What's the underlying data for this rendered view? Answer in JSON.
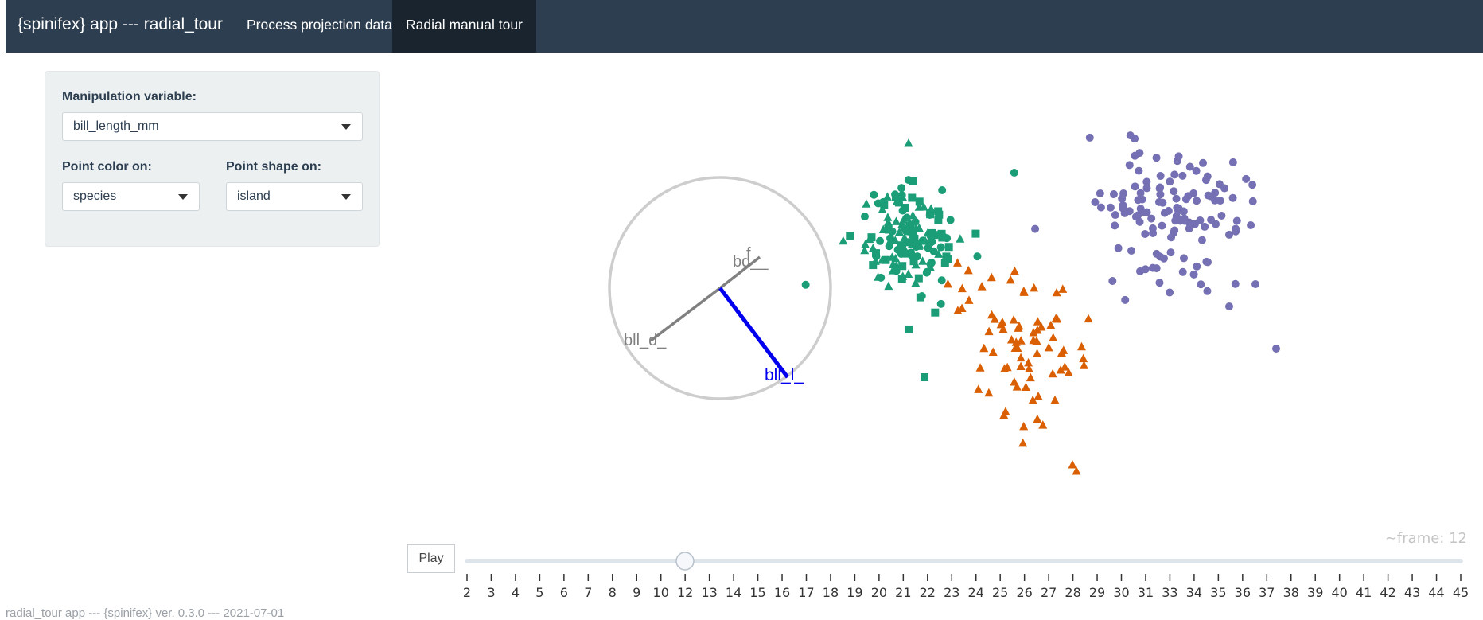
{
  "navbar": {
    "brand": "{spinifex} app --- radial_tour",
    "tabs": [
      {
        "label": "Process projection data",
        "active": false
      },
      {
        "label": "Radial manual tour",
        "active": true
      }
    ]
  },
  "controls": {
    "manip_label": "Manipulation variable:",
    "manip_value": "bill_length_mm",
    "color_label": "Point color on:",
    "color_value": "species",
    "shape_label": "Point shape on:",
    "shape_value": "island"
  },
  "axes_labels": [
    "bll_d_",
    "bd__",
    "f",
    "bll_l_"
  ],
  "colors": {
    "green": "#1b9e77",
    "orange": "#d95f02",
    "purple": "#7570b3",
    "manip_axis": "#0000ee",
    "other_axis": "#808080",
    "navbar": "#2c3e50"
  },
  "animation": {
    "play_label": "Play",
    "frame_readout": "~frame: 12",
    "current_frame": 12,
    "ticks": [
      "2",
      "3",
      "4",
      "5",
      "6",
      "7",
      "8",
      "9",
      "10",
      "12",
      "13",
      "14",
      "15",
      "16",
      "17",
      "18",
      "19",
      "20",
      "21",
      "22",
      "23",
      "24",
      "25",
      "26",
      "27",
      "28",
      "29",
      "30",
      "31",
      "33",
      "34",
      "35",
      "36",
      "37",
      "38",
      "39",
      "40",
      "41",
      "42",
      "43",
      "44",
      "45"
    ]
  },
  "footer": "radial_tour app --- {spinifex} ver. 0.3.0 --- 2021-07-01"
}
